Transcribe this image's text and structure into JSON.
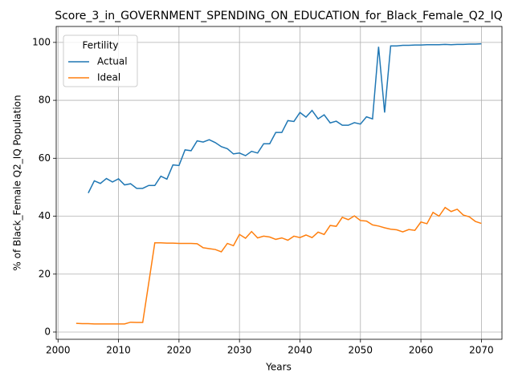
{
  "chart_data": {
    "type": "line",
    "title": "Score_3_in_GOVERNMENT_SPENDING_ON_EDUCATION_for_Black_Female_Q2_IQ",
    "x_label": "Years",
    "y_label": "% of Black_Female Q2_IQ Population",
    "x": [
      2003,
      2004,
      2005,
      2006,
      2007,
      2008,
      2009,
      2010,
      2011,
      2012,
      2013,
      2014,
      2015,
      2016,
      2017,
      2018,
      2019,
      2020,
      2021,
      2022,
      2023,
      2024,
      2025,
      2026,
      2027,
      2028,
      2029,
      2030,
      2031,
      2032,
      2033,
      2034,
      2035,
      2036,
      2037,
      2038,
      2039,
      2040,
      2041,
      2042,
      2043,
      2044,
      2045,
      2046,
      2047,
      2048,
      2049,
      2050,
      2051,
      2052,
      2053,
      2054,
      2055,
      2056,
      2057,
      2058,
      2059,
      2060,
      2061,
      2062,
      2063,
      2064,
      2065,
      2066,
      2067,
      2068,
      2069,
      2070
    ],
    "series": [
      {
        "name": "Actual",
        "color": "#1f77b4",
        "values": [
          null,
          null,
          48,
          52.2,
          51.3,
          53,
          51.8,
          52.9,
          50.8,
          51.2,
          49.6,
          49.6,
          50.6,
          50.6,
          53.8,
          52.8,
          57.7,
          57.5,
          62.9,
          62.6,
          66,
          65.6,
          66.4,
          65.4,
          64,
          63.3,
          61.5,
          61.8,
          60.9,
          62.4,
          61.8,
          65,
          65,
          68.9,
          68.9,
          73,
          72.7,
          75.8,
          74.2,
          76.5,
          73.6,
          75,
          72.2,
          72.8,
          71.4,
          71.4,
          72.3,
          71.8,
          74.3,
          73.6,
          98.5,
          75.8,
          98.8,
          98.8,
          99,
          99,
          99.1,
          99.1,
          99.2,
          99.2,
          99.2,
          99.3,
          99.2,
          99.3,
          99.3,
          99.4,
          99.4,
          99.5
        ]
      },
      {
        "name": "Ideal",
        "color": "#ff7f0e",
        "values": [
          3,
          2.9,
          2.9,
          2.8,
          2.8,
          2.8,
          2.8,
          2.8,
          2.8,
          3.4,
          3.3,
          3.3,
          17,
          30.8,
          30.8,
          30.7,
          30.7,
          30.6,
          30.6,
          30.6,
          30.5,
          29.1,
          28.8,
          28.5,
          27.7,
          30.6,
          29.8,
          33.7,
          32.4,
          34.7,
          32.5,
          33.1,
          32.8,
          32,
          32.5,
          31.7,
          33.1,
          32.6,
          33.5,
          32.6,
          34.5,
          33.7,
          36.8,
          36.5,
          39.6,
          38.8,
          40.1,
          38.5,
          38.3,
          37,
          36.6,
          36,
          35.5,
          35.3,
          34.6,
          35.4,
          35.1,
          38,
          37.4,
          41.3,
          40,
          43,
          41.6,
          42.4,
          40.4,
          39.8,
          38.2,
          37.5
        ]
      }
    ],
    "xlim": [
      1999.7,
      2073.4
    ],
    "ylim": [
      -2.5,
      105.5
    ],
    "xticks": [
      2000,
      2010,
      2020,
      2030,
      2040,
      2050,
      2060,
      2070
    ],
    "yticks": [
      0,
      20,
      40,
      60,
      80,
      100
    ],
    "grid": true,
    "legend_title": "Fertility",
    "legend_loc": "upper left"
  }
}
